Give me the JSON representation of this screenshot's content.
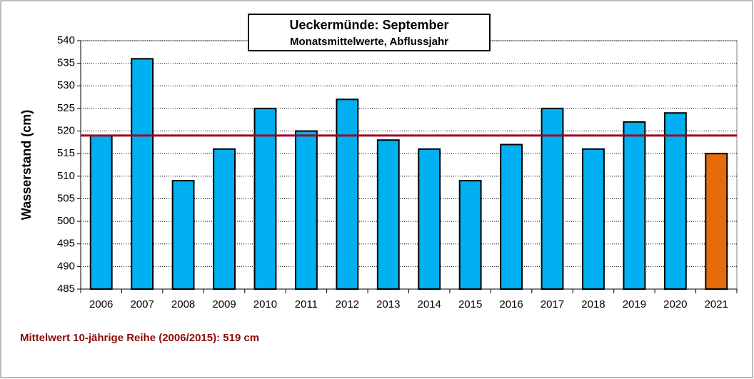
{
  "chart_data": {
    "type": "bar",
    "title": "Ueckermünde: September",
    "subtitle": "Monatsmittelwerte, Abflussjahr",
    "y_label": "Wasserstand (cm)",
    "annotation": "Mittelwert 10-jährige Reihe (2006/2015): 519 cm",
    "categories": [
      "2006",
      "2007",
      "2008",
      "2009",
      "2010",
      "2011",
      "2012",
      "2013",
      "2014",
      "2015",
      "2016",
      "2017",
      "2018",
      "2019",
      "2020",
      "2021"
    ],
    "values": [
      519,
      536,
      509,
      516,
      525,
      520,
      527,
      518,
      516,
      509,
      517,
      525,
      516,
      522,
      524,
      515
    ],
    "colors": [
      "#00b0f0",
      "#00b0f0",
      "#00b0f0",
      "#00b0f0",
      "#00b0f0",
      "#00b0f0",
      "#00b0f0",
      "#00b0f0",
      "#00b0f0",
      "#00b0f0",
      "#00b0f0",
      "#00b0f0",
      "#00b0f0",
      "#00b0f0",
      "#00b0f0",
      "#e46c0a"
    ],
    "reference_line": {
      "value": 519,
      "color": "#a00021"
    },
    "ylim": [
      485,
      540
    ],
    "yticks": [
      485,
      490,
      495,
      500,
      505,
      510,
      515,
      520,
      525,
      530,
      535,
      540
    ],
    "grid": true
  }
}
